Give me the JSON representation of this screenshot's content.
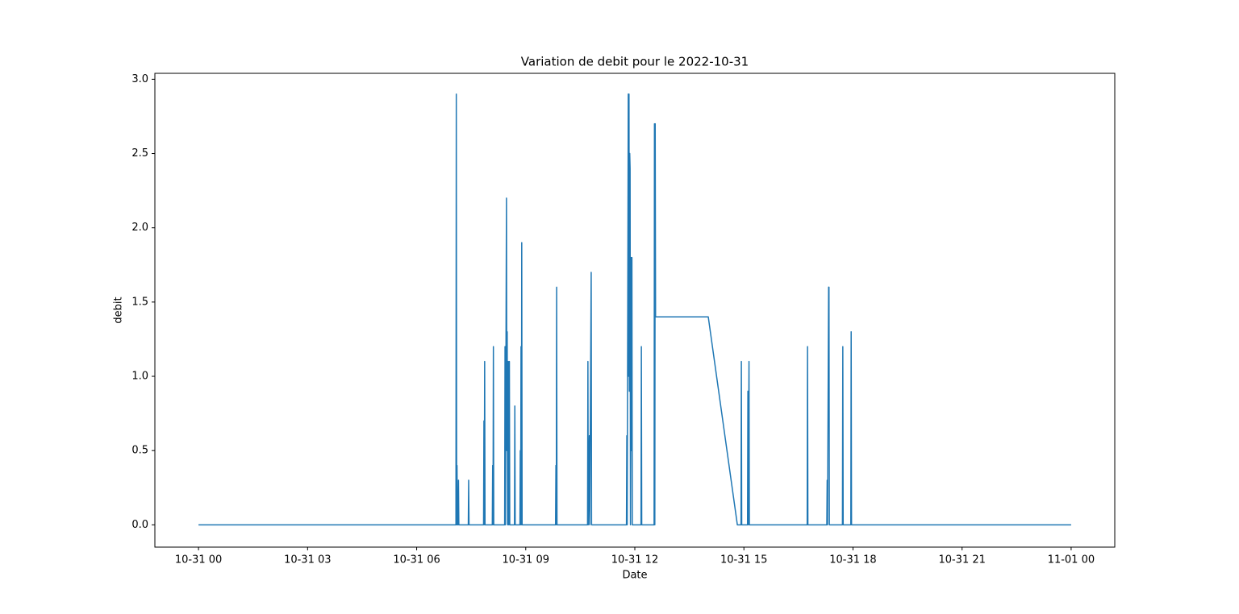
{
  "chart_data": {
    "type": "line",
    "title": "Variation de debit pour le 2022-10-31",
    "x_label": "Date",
    "y_label": "debit",
    "xlim": [
      -1.2,
      25.2
    ],
    "ylim": [
      -0.15,
      3.04
    ],
    "xticks": [
      {
        "value": 0,
        "label": "10-31 00"
      },
      {
        "value": 3,
        "label": "10-31 03"
      },
      {
        "value": 6,
        "label": "10-31 06"
      },
      {
        "value": 9,
        "label": "10-31 09"
      },
      {
        "value": 12,
        "label": "10-31 12"
      },
      {
        "value": 15,
        "label": "10-31 15"
      },
      {
        "value": 18,
        "label": "10-31 18"
      },
      {
        "value": 21,
        "label": "10-31 21"
      },
      {
        "value": 24,
        "label": "11-01 00"
      }
    ],
    "yticks": [
      {
        "value": 0,
        "label": "0.0"
      },
      0.5,
      {
        "value": 1,
        "label": "1.0"
      },
      1.5,
      {
        "value": 2,
        "label": "2.0"
      },
      2.5,
      {
        "value": 3,
        "label": "3.0"
      }
    ],
    "grid": false,
    "series": [
      {
        "name": "debit",
        "color": "#1f77b4",
        "x": [
          0,
          7.08,
          7.09,
          7.1,
          7.11,
          7.12,
          7.13,
          7.14,
          7.15,
          7.16,
          7.42,
          7.43,
          7.44,
          7.84,
          7.85,
          7.86,
          7.87,
          7.88,
          8.08,
          8.09,
          8.1,
          8.11,
          8.12,
          8.42,
          8.43,
          8.44,
          8.47,
          8.48,
          8.49,
          8.5,
          8.52,
          8.53,
          8.55,
          8.56,
          8.69,
          8.7,
          8.71,
          8.84,
          8.85,
          8.86,
          8.87,
          8.88,
          8.89,
          8.9,
          9.82,
          9.83,
          9.84,
          9.85,
          9.86,
          10.7,
          10.71,
          10.72,
          10.75,
          10.76,
          10.8,
          10.81,
          11.77,
          11.78,
          11.79,
          11.82,
          11.83,
          11.84,
          11.85,
          11.86,
          11.87,
          11.88,
          11.9,
          11.91,
          11.92,
          11.93,
          12.17,
          12.18,
          12.19,
          12.53,
          12.54,
          12.55,
          12.56,
          12.57,
          14.02,
          14.82,
          14.92,
          14.93,
          14.94,
          15.1,
          15.11,
          15.12,
          15.14,
          15.15,
          16.74,
          16.75,
          16.76,
          17.28,
          17.29,
          17.3,
          17.33,
          17.34,
          17.35,
          17.71,
          17.72,
          17.73,
          17.94,
          17.95,
          17.96,
          24
        ],
        "values": [
          0,
          0,
          2.9,
          0,
          0.4,
          0,
          0.2,
          0,
          0.3,
          0,
          0,
          0.3,
          0,
          0,
          0.7,
          0,
          1.1,
          0,
          0,
          0.4,
          0,
          1.2,
          0,
          0,
          1.2,
          0,
          2.2,
          0.5,
          1.3,
          0,
          1.1,
          0,
          1.1,
          0,
          0,
          0.8,
          0,
          0,
          0.5,
          0,
          1.2,
          0,
          1.9,
          0,
          0,
          0.4,
          0,
          1.6,
          0,
          0,
          1.1,
          0,
          0.6,
          0,
          1.7,
          0,
          0,
          0.6,
          0,
          2.9,
          1.0,
          2.9,
          0.9,
          2.5,
          2.4,
          0,
          1.8,
          0.5,
          1.8,
          0,
          0,
          1.2,
          0,
          0,
          2.7,
          0,
          2.7,
          1.4,
          1.4,
          0,
          0,
          1.1,
          0,
          0,
          0.9,
          0,
          1.1,
          0,
          0,
          1.2,
          0,
          0,
          0.3,
          0,
          1.6,
          1.6,
          0,
          0,
          1.2,
          0,
          0,
          1.3,
          0,
          0
        ]
      }
    ]
  }
}
